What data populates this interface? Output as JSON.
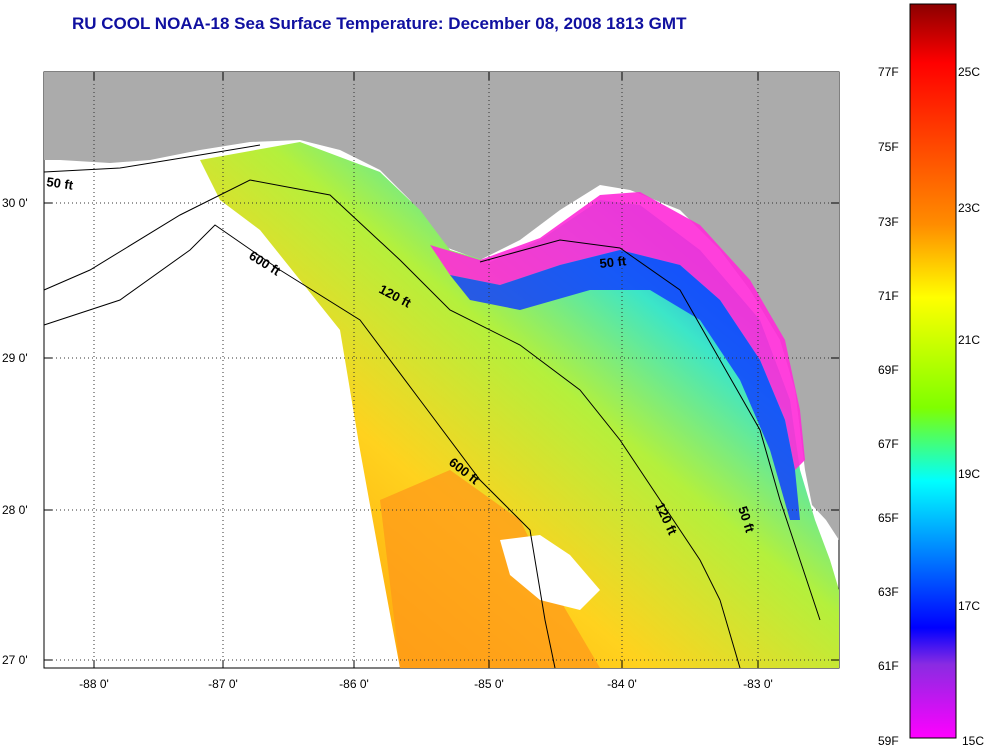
{
  "title": "RU COOL  NOAA-18  Sea Surface Temperature:  December 08, 2008 1813 GMT",
  "map": {
    "lon_ticks": [
      "-88 0'",
      "-87 0'",
      "-86 0'",
      "-85 0'",
      "-84 0'",
      "-83 0'"
    ],
    "lat_ticks": [
      "30 0'",
      "29 0'",
      "28 0'",
      "27 0'"
    ],
    "contour_labels": [
      {
        "text": "50 ft",
        "id": "50ft-west"
      },
      {
        "text": "600 ft",
        "id": "600ft-north"
      },
      {
        "text": "120 ft",
        "id": "120ft-north"
      },
      {
        "text": "50 ft",
        "id": "50ft-bigbend"
      },
      {
        "text": "600 ft",
        "id": "600ft-south"
      },
      {
        "text": "120 ft",
        "id": "120ft-south"
      },
      {
        "text": "50 ft",
        "id": "50ft-south"
      }
    ]
  },
  "colorbar": {
    "fahrenheit_labels": [
      "77F",
      "75F",
      "73F",
      "71F",
      "69F",
      "67F",
      "65F",
      "63F",
      "61F",
      "59F"
    ],
    "celsius_labels": [
      "25C",
      "23C",
      "21C",
      "19C",
      "17C",
      "15C"
    ],
    "colors": {
      "max": "#8b0000",
      "red": "#ff0000",
      "orange": "#ff8c00",
      "yellow": "#ffff00",
      "green": "#7fff00",
      "cyan": "#00ffff",
      "blue": "#0000ff",
      "purple": "#8a2be2",
      "min": "#ff00ff"
    }
  },
  "colors": {
    "land": "#ababab",
    "title": "#1010a0"
  }
}
